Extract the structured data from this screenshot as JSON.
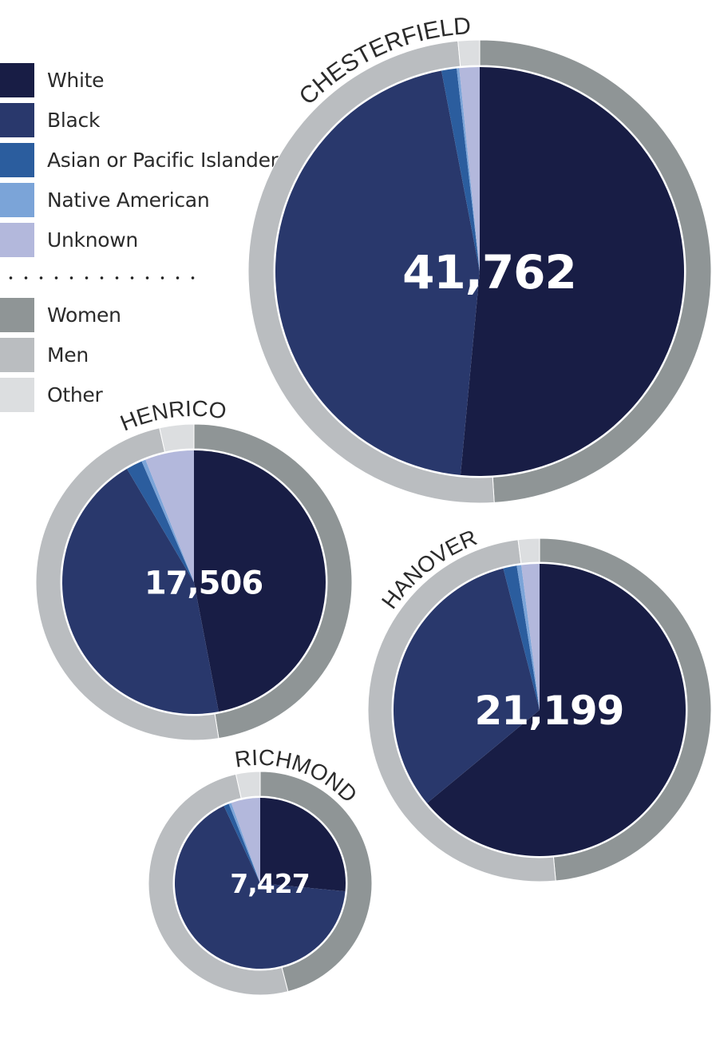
{
  "legend": {
    "race": [
      {
        "label": "White",
        "color": "#181d45"
      },
      {
        "label": "Black",
        "color": "#29386c"
      },
      {
        "label": "Asian or Pacific Islander",
        "color": "#2b5d9e"
      },
      {
        "label": "Native American",
        "color": "#7ba4d8"
      },
      {
        "label": "Unknown",
        "color": "#b3b8dc"
      }
    ],
    "gender": [
      {
        "label": "Women",
        "color": "#8f9596"
      },
      {
        "label": "Men",
        "color": "#babdc0"
      },
      {
        "label": "Other",
        "color": "#dcdee0"
      }
    ]
  },
  "chart_data": [
    {
      "type": "pie",
      "name": "CHESTERFIELD",
      "total": "41,762",
      "race_values": {
        "White": 51.5,
        "Black": 45.5,
        "Asian or Pacific Islander": 1.2,
        "Native American": 0.2,
        "Unknown": 1.6
      },
      "gender_values": {
        "Women": 49.0,
        "Men": 49.5,
        "Other": 1.5
      }
    },
    {
      "type": "pie",
      "name": "HENRICO",
      "total": "17,506",
      "race_values": {
        "White": 47.0,
        "Black": 44.5,
        "Asian or Pacific Islander": 2.0,
        "Native American": 0.5,
        "Unknown": 6.0
      },
      "gender_values": {
        "Women": 47.5,
        "Men": 49.0,
        "Other": 3.5
      }
    },
    {
      "type": "pie",
      "name": "HANOVER",
      "total": "21,199",
      "race_values": {
        "White": 64.0,
        "Black": 32.0,
        "Asian or Pacific Islander": 1.5,
        "Native American": 0.5,
        "Unknown": 2.0
      },
      "gender_values": {
        "Women": 48.5,
        "Men": 49.5,
        "Other": 2.0
      }
    },
    {
      "type": "pie",
      "name": "RICHMOND",
      "total": "7,427",
      "race_values": {
        "White": 26.5,
        "Black": 66.5,
        "Asian or Pacific Islander": 1.0,
        "Native American": 0.5,
        "Unknown": 5.5
      },
      "gender_values": {
        "Women": 46.0,
        "Men": 50.5,
        "Other": 3.5
      }
    }
  ]
}
